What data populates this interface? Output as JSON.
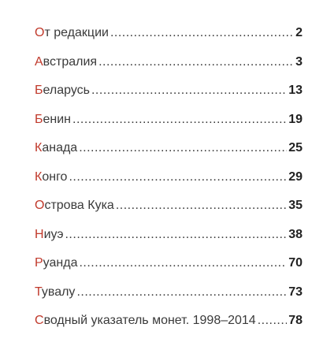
{
  "colors": {
    "initial": "#c0392b",
    "text": "#3a3a3a",
    "page_number": "#222222"
  },
  "toc": {
    "entries": [
      {
        "initial": "О",
        "rest": "т редакции",
        "page": "2"
      },
      {
        "initial": "А",
        "rest": "встралия",
        "page": "3"
      },
      {
        "initial": "Б",
        "rest": "еларусь",
        "page": "13"
      },
      {
        "initial": "Б",
        "rest": "енин",
        "page": "19"
      },
      {
        "initial": "К",
        "rest": "анада",
        "page": "25"
      },
      {
        "initial": "К",
        "rest": "онго",
        "page": "29"
      },
      {
        "initial": "О",
        "rest": "строва Кука",
        "page": "35"
      },
      {
        "initial": "Н",
        "rest": "иуэ",
        "page": "38"
      },
      {
        "initial": "Р",
        "rest": "уанда",
        "page": "70"
      },
      {
        "initial": "Т",
        "rest": "увалу",
        "page": "73"
      },
      {
        "initial": "С",
        "rest": "водный указатель монет. 1998–2014",
        "page": "78"
      }
    ]
  }
}
